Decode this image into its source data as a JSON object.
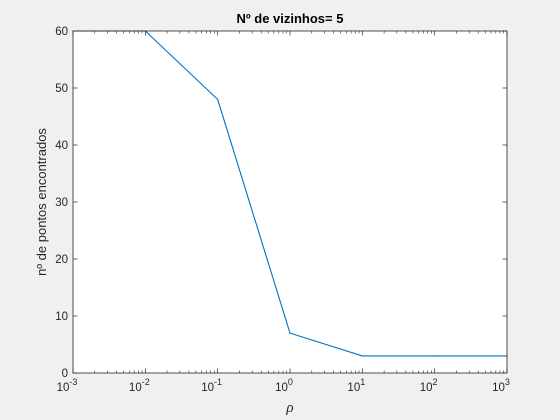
{
  "chart_data": {
    "type": "line",
    "title": "Nº de vizinhos= 5",
    "xlabel": "ρ",
    "ylabel": "nº de pontos encontrados",
    "xscale": "log",
    "xlim": [
      0.001,
      1000
    ],
    "ylim": [
      0,
      60
    ],
    "grid": false,
    "x_ticks": [
      {
        "value": 0.001,
        "base": "10",
        "exp": "-3"
      },
      {
        "value": 0.01,
        "base": "10",
        "exp": "-2"
      },
      {
        "value": 0.1,
        "base": "10",
        "exp": "-1"
      },
      {
        "value": 1,
        "base": "10",
        "exp": "0"
      },
      {
        "value": 10,
        "base": "10",
        "exp": "1"
      },
      {
        "value": 100,
        "base": "10",
        "exp": "2"
      },
      {
        "value": 1000,
        "base": "10",
        "exp": "3"
      }
    ],
    "y_ticks": [
      0,
      10,
      20,
      30,
      40,
      50,
      60
    ],
    "series": [
      {
        "color": "#0072bd",
        "x": [
          0.001,
          0.01,
          0.1,
          1,
          10,
          100,
          1000
        ],
        "y": [
          60,
          60,
          48,
          7,
          3,
          3,
          3
        ]
      }
    ]
  }
}
